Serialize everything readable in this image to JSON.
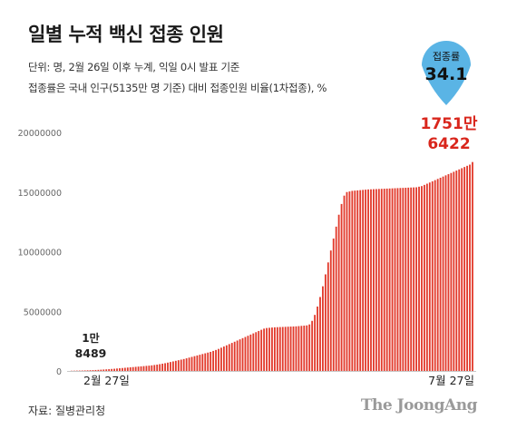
{
  "title": "일별 누적 백신 접종 인원",
  "subtitle_1": "단위: 명, 2월 26일 이후 누계, 익일 0시 발표 기준",
  "subtitle_2": "접종률은 국내 인구(5135만 명 기준) 대비 접종인원 비율(1차접종), %",
  "source": "자료: 질병관리청",
  "brand": "The JoongAng",
  "colors": {
    "bar": "#e23a2c",
    "accent_red": "#d9261c",
    "pin": "#5ab4e5",
    "axis": "#c8c8c8"
  },
  "pin": {
    "label": "접종률",
    "value": "34.1"
  },
  "first_label": {
    "line1": "1만",
    "line2": "8489"
  },
  "last_label": {
    "line1": "1751만",
    "line2": "6422"
  },
  "chart_data": {
    "type": "bar",
    "title": "일별 누적 백신 접종 인원",
    "ylim": [
      0,
      20000000
    ],
    "y_ticks": [
      "20000000",
      "15000000",
      "10000000",
      "5000000",
      "0"
    ],
    "x_tick_labels": {
      "first": "2월 27일",
      "last": "7월 27일"
    },
    "grid": false,
    "n_days": 151,
    "x_start": "2월 27일",
    "x_end": "7월 27일",
    "first_value": 18489,
    "last_value": 17516422,
    "values": [
      18489,
      23000,
      28000,
      32000,
      38000,
      45000,
      52000,
      60000,
      70000,
      80000,
      92000,
      105000,
      120000,
      135000,
      150000,
      168000,
      185000,
      205000,
      225000,
      245000,
      265000,
      285000,
      305000,
      325000,
      345000,
      365000,
      385000,
      405000,
      425000,
      445000,
      470000,
      500000,
      530000,
      570000,
      610000,
      650000,
      700000,
      750000,
      800000,
      850000,
      900000,
      950000,
      1000000,
      1060000,
      1120000,
      1180000,
      1240000,
      1300000,
      1360000,
      1420000,
      1480000,
      1540000,
      1600000,
      1680000,
      1760000,
      1850000,
      1950000,
      2050000,
      2150000,
      2250000,
      2350000,
      2450000,
      2550000,
      2650000,
      2750000,
      2850000,
      2950000,
      3050000,
      3150000,
      3250000,
      3350000,
      3450000,
      3550000,
      3600000,
      3620000,
      3640000,
      3660000,
      3670000,
      3680000,
      3690000,
      3700000,
      3710000,
      3720000,
      3730000,
      3740000,
      3760000,
      3780000,
      3800000,
      3820000,
      3900000,
      4200000,
      4700000,
      5400000,
      6200000,
      7100000,
      8100000,
      9100000,
      10100000,
      11100000,
      12100000,
      13100000,
      14000000,
      14700000,
      15000000,
      15050000,
      15100000,
      15120000,
      15140000,
      15160000,
      15180000,
      15200000,
      15220000,
      15230000,
      15240000,
      15250000,
      15260000,
      15270000,
      15280000,
      15290000,
      15300000,
      15310000,
      15320000,
      15330000,
      15340000,
      15350000,
      15360000,
      15370000,
      15380000,
      15390000,
      15400000,
      15450000,
      15500000,
      15600000,
      15700000,
      15800000,
      15900000,
      16000000,
      16100000,
      16200000,
      16300000,
      16400000,
      16500000,
      16600000,
      16700000,
      16800000,
      16900000,
      17000000,
      17100000,
      17200000,
      17300000,
      17516422
    ]
  }
}
